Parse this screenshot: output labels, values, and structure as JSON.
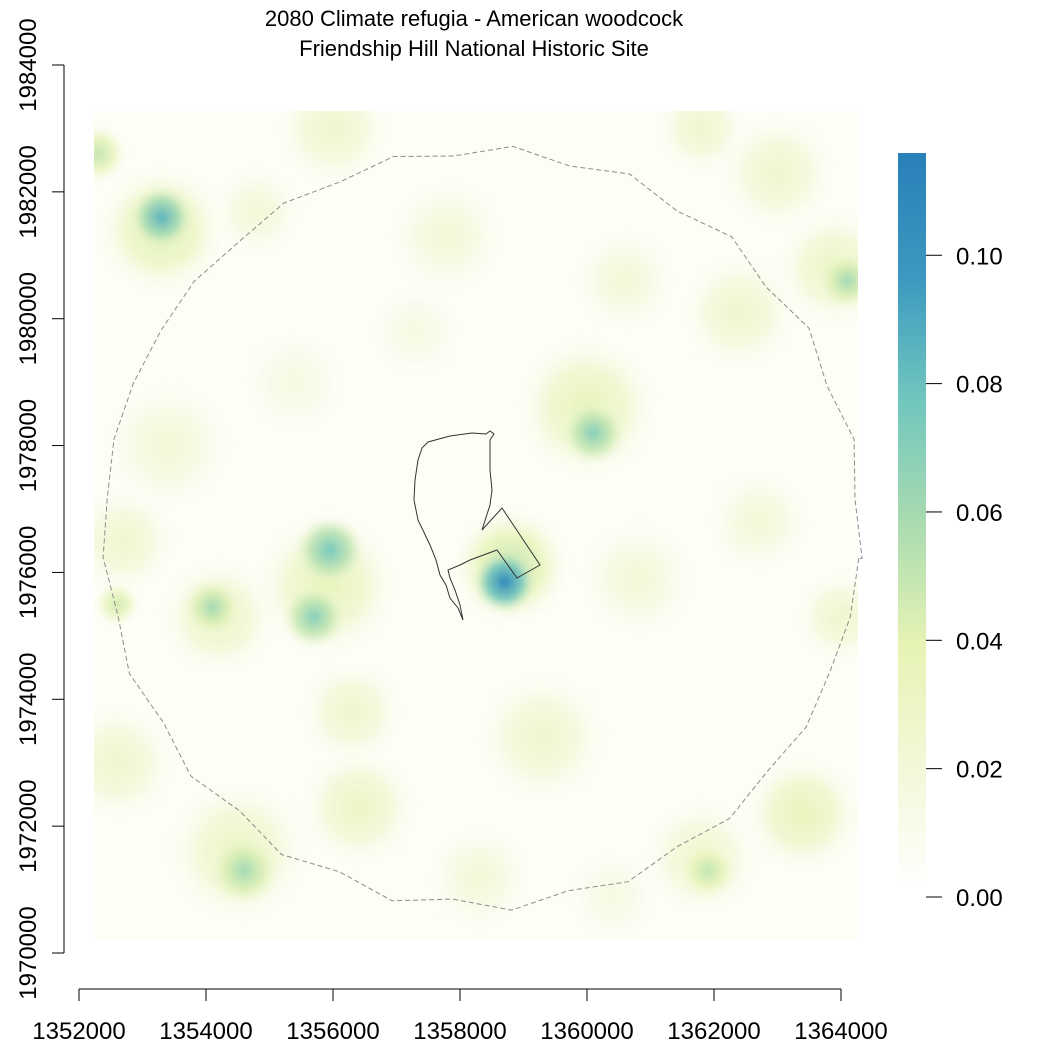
{
  "title": {
    "line1": "2080 Climate refugia - American woodcock",
    "line2": "Friendship Hill National Historic Site"
  },
  "axes": {
    "x_ticks": [
      "1352000",
      "1354000",
      "1356000",
      "1358000",
      "1360000",
      "1362000",
      "1364000"
    ],
    "y_ticks": [
      "1970000",
      "1972000",
      "1974000",
      "1976000",
      "1978000",
      "1980000",
      "1982000",
      "1984000"
    ],
    "x_range": [
      1352000,
      1364000
    ],
    "y_range": [
      1970000,
      1984000
    ]
  },
  "legend": {
    "ticks": [
      "0.00",
      "0.02",
      "0.04",
      "0.06",
      "0.08",
      "0.10"
    ],
    "range": [
      0,
      0.115
    ],
    "colors": [
      "#ffffff",
      "#f3f8d8",
      "#e6f3b4",
      "#a9dbb0",
      "#70c6be",
      "#3c98c0",
      "#2a7fb8"
    ],
    "placement": "right"
  },
  "colors": {
    "park_boundary": "#333333",
    "buffer_line": "#8c8c8c"
  },
  "hotspots": [
    {
      "x": 1358700,
      "y": 1975850,
      "r": 500,
      "v": 0.11
    },
    {
      "x": 1358800,
      "y": 1976100,
      "r": 900,
      "v": 0.05
    },
    {
      "x": 1353300,
      "y": 1981600,
      "r": 500,
      "v": 0.085
    },
    {
      "x": 1353300,
      "y": 1981400,
      "r": 1000,
      "v": 0.04
    },
    {
      "x": 1355950,
      "y": 1976350,
      "r": 550,
      "v": 0.075
    },
    {
      "x": 1355700,
      "y": 1975300,
      "r": 500,
      "v": 0.07
    },
    {
      "x": 1355900,
      "y": 1975800,
      "r": 1100,
      "v": 0.035
    },
    {
      "x": 1360100,
      "y": 1978200,
      "r": 500,
      "v": 0.07
    },
    {
      "x": 1360000,
      "y": 1978600,
      "r": 1100,
      "v": 0.035
    },
    {
      "x": 1354100,
      "y": 1975450,
      "r": 450,
      "v": 0.06
    },
    {
      "x": 1354200,
      "y": 1975300,
      "r": 900,
      "v": 0.03
    },
    {
      "x": 1352300,
      "y": 1982600,
      "r": 450,
      "v": 0.05
    },
    {
      "x": 1364100,
      "y": 1980600,
      "r": 450,
      "v": 0.06
    },
    {
      "x": 1363900,
      "y": 1980800,
      "r": 900,
      "v": 0.03
    },
    {
      "x": 1354600,
      "y": 1971300,
      "r": 550,
      "v": 0.06
    },
    {
      "x": 1354500,
      "y": 1971600,
      "r": 1100,
      "v": 0.03
    },
    {
      "x": 1361900,
      "y": 1971300,
      "r": 450,
      "v": 0.05
    },
    {
      "x": 1361800,
      "y": 1971500,
      "r": 900,
      "v": 0.025
    },
    {
      "x": 1363400,
      "y": 1972200,
      "r": 900,
      "v": 0.035
    },
    {
      "x": 1356400,
      "y": 1972300,
      "r": 900,
      "v": 0.03
    },
    {
      "x": 1359300,
      "y": 1973400,
      "r": 1000,
      "v": 0.025
    },
    {
      "x": 1362400,
      "y": 1980100,
      "r": 900,
      "v": 0.025
    },
    {
      "x": 1363000,
      "y": 1982300,
      "r": 900,
      "v": 0.025
    },
    {
      "x": 1361800,
      "y": 1983000,
      "r": 700,
      "v": 0.025
    },
    {
      "x": 1353400,
      "y": 1978000,
      "r": 1000,
      "v": 0.02
    },
    {
      "x": 1352600,
      "y": 1973000,
      "r": 900,
      "v": 0.025
    },
    {
      "x": 1356300,
      "y": 1973800,
      "r": 800,
      "v": 0.025
    },
    {
      "x": 1357800,
      "y": 1981300,
      "r": 900,
      "v": 0.02
    },
    {
      "x": 1355400,
      "y": 1979000,
      "r": 800,
      "v": 0.015
    },
    {
      "x": 1352700,
      "y": 1976500,
      "r": 800,
      "v": 0.025
    },
    {
      "x": 1360800,
      "y": 1975900,
      "r": 900,
      "v": 0.02
    },
    {
      "x": 1356000,
      "y": 1983000,
      "r": 900,
      "v": 0.025
    },
    {
      "x": 1354800,
      "y": 1981700,
      "r": 700,
      "v": 0.02
    },
    {
      "x": 1362700,
      "y": 1976800,
      "r": 800,
      "v": 0.02
    },
    {
      "x": 1358300,
      "y": 1971200,
      "r": 800,
      "v": 0.02
    },
    {
      "x": 1360400,
      "y": 1970900,
      "r": 700,
      "v": 0.015
    },
    {
      "x": 1352600,
      "y": 1975500,
      "r": 350,
      "v": 0.045
    },
    {
      "x": 1364000,
      "y": 1975300,
      "r": 700,
      "v": 0.025
    },
    {
      "x": 1357300,
      "y": 1979800,
      "r": 700,
      "v": 0.015
    },
    {
      "x": 1360600,
      "y": 1980600,
      "r": 800,
      "v": 0.02
    }
  ]
}
